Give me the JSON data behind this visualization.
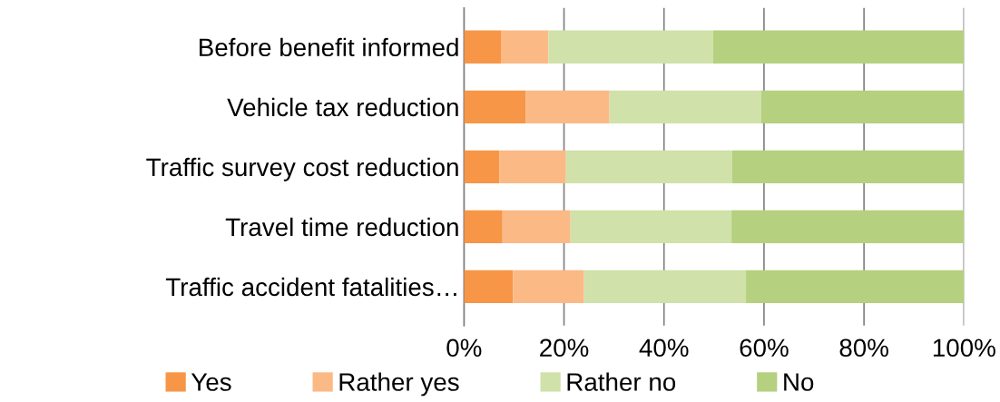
{
  "chart_data": {
    "type": "bar",
    "orientation": "horizontal",
    "stacked": true,
    "categories": [
      "Before benefit informed",
      "Vehicle tax reduction",
      "Traffic survey cost reduction",
      "Travel time reduction",
      "Traffic accident fatalities…"
    ],
    "series": [
      {
        "name": "Yes",
        "color": "#f79646",
        "values": [
          7.5,
          12.3,
          7.1,
          7.7,
          9.8
        ]
      },
      {
        "name": "Rather yes",
        "color": "#fbb986",
        "values": [
          9.4,
          16.8,
          13.3,
          13.6,
          14.2
        ]
      },
      {
        "name": "Rather no",
        "color": "#d0e1a9",
        "values": [
          32.9,
          30.3,
          33.2,
          32.2,
          32.4
        ]
      },
      {
        "name": "No",
        "color": "#b5d07e",
        "values": [
          50.2,
          40.6,
          46.4,
          46.5,
          43.6
        ]
      }
    ],
    "xlim": [
      0,
      100
    ],
    "xticks": [
      {
        "value": 0,
        "label": "0%"
      },
      {
        "value": 20,
        "label": "20%"
      },
      {
        "value": 40,
        "label": "40%"
      },
      {
        "value": 60,
        "label": "60%"
      },
      {
        "value": 80,
        "label": "80%"
      },
      {
        "value": 100,
        "label": "100%"
      }
    ],
    "grid": "x",
    "legend": "bottom"
  }
}
